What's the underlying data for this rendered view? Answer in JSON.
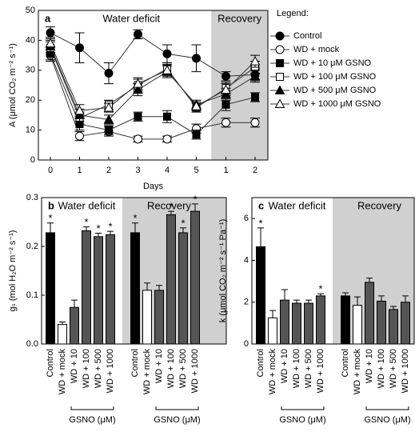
{
  "chart_data": [
    {
      "type": "line",
      "panel": "a",
      "annotations": [
        "Water deficit",
        "Recovery"
      ],
      "legend_title": "Legend:",
      "x_label": "Days",
      "y_label": "A (μmol CO₂ m⁻² s⁻¹)",
      "categories": [
        "0",
        "1",
        "2",
        "3",
        "4",
        "5",
        "1",
        "2"
      ],
      "ylim": [
        0,
        50
      ],
      "yticks": [
        0,
        10,
        20,
        30,
        40,
        50
      ],
      "series": [
        {
          "name": "Control",
          "marker": "circle",
          "fill": "#000000",
          "values": [
            42.5,
            37.5,
            29,
            42,
            35.5,
            34,
            28,
            28.5
          ],
          "errors": [
            2,
            5,
            3.5,
            1.5,
            3,
            4.5,
            1.5,
            2
          ]
        },
        {
          "name": "WD + mock",
          "marker": "circle",
          "fill": "#ffffff",
          "values": [
            35,
            8,
            9.5,
            7,
            7,
            10.5,
            12.5,
            12.5
          ],
          "errors": [
            2,
            1.5,
            1.5,
            1,
            1,
            1.5,
            1.5,
            1.5
          ]
        },
        {
          "name": "WD + 10 μM GSNO",
          "marker": "square",
          "fill": "#000000",
          "values": [
            35.5,
            12,
            10,
            14.5,
            14.5,
            8.5,
            18.5,
            21
          ],
          "errors": [
            2,
            2,
            1.5,
            1.5,
            2,
            1.5,
            2,
            1.5
          ]
        },
        {
          "name": "WD + 100 μM GSNO",
          "marker": "square",
          "fill": "#ffffff",
          "values": [
            37.5,
            14,
            18.5,
            25,
            30.5,
            17.5,
            24,
            31
          ],
          "errors": [
            2,
            2,
            1.5,
            2,
            2,
            1.5,
            2,
            2
          ]
        },
        {
          "name": "WD + 500 μM GSNO",
          "marker": "triangle",
          "fill": "#000000",
          "values": [
            38,
            15,
            13.5,
            23.5,
            29.5,
            18.5,
            22,
            28
          ],
          "errors": [
            2,
            2,
            1.5,
            2,
            2,
            1.5,
            2,
            2
          ]
        },
        {
          "name": "WD + 1000 μM GSNO",
          "marker": "triangle",
          "fill": "#ffffff",
          "values": [
            39,
            16.5,
            17.5,
            25.5,
            30,
            18,
            23.5,
            33
          ],
          "errors": [
            2,
            2,
            1.5,
            2,
            2,
            1.5,
            2,
            2
          ]
        }
      ]
    },
    {
      "type": "bar",
      "panel": "b",
      "y_label": "gₛ (mol H₂O m⁻² s⁻¹)",
      "group_label": "GSNO (μM)",
      "categories": [
        "Control",
        "WD + mock",
        "WD + 10",
        "WD + 100",
        "WD + 500",
        "WD + 1000"
      ],
      "colors": [
        "#000000",
        "#ffffff",
        "#555555",
        "#555555",
        "#555555",
        "#555555"
      ],
      "ylim": [
        0,
        0.3
      ],
      "yticks": [
        {
          "value": 0,
          "label": "0.0"
        },
        0.1,
        0.2,
        0.3
      ],
      "series": [
        {
          "name": "Water deficit",
          "values": [
            0.228,
            0.04,
            0.075,
            0.232,
            0.22,
            0.224
          ],
          "errors": [
            0.02,
            0.005,
            0.015,
            0.008,
            0.007,
            0.007
          ],
          "marks": [
            "*",
            null,
            null,
            "*",
            "*",
            "*"
          ]
        },
        {
          "name": "Recovery",
          "values": [
            0.228,
            0.11,
            0.11,
            0.265,
            0.228,
            0.272
          ],
          "errors": [
            0.02,
            0.015,
            0.01,
            0.007,
            0.01,
            0.015
          ],
          "marks": [
            "*",
            null,
            null,
            "*",
            "*",
            "*"
          ]
        }
      ]
    },
    {
      "type": "bar",
      "panel": "c",
      "y_label": "k (μmol CO₂ m⁻² s⁻¹ Pa⁻¹)",
      "group_label": "GSNO (μM)",
      "categories": [
        "Control",
        "WD + mock",
        "WD + 10",
        "WD + 100",
        "WD + 500",
        "WD + 1000"
      ],
      "colors": [
        "#000000",
        "#ffffff",
        "#555555",
        "#555555",
        "#555555",
        "#555555"
      ],
      "ylim": [
        0,
        7
      ],
      "yticks": [
        0,
        2,
        4,
        6
      ],
      "series": [
        {
          "name": "Water deficit",
          "values": [
            4.65,
            1.25,
            2.1,
            1.95,
            1.95,
            2.3
          ],
          "errors": [
            0.9,
            0.35,
            0.5,
            0.15,
            0.15,
            0.1
          ],
          "marks": [
            "*",
            null,
            null,
            null,
            null,
            "*"
          ]
        },
        {
          "name": "Recovery",
          "values": [
            2.3,
            1.85,
            2.95,
            2.05,
            1.65,
            2.0
          ],
          "errors": [
            0.15,
            0.4,
            0.2,
            0.25,
            0.15,
            0.3
          ],
          "marks": [
            null,
            null,
            null,
            null,
            null,
            null
          ]
        }
      ]
    }
  ]
}
